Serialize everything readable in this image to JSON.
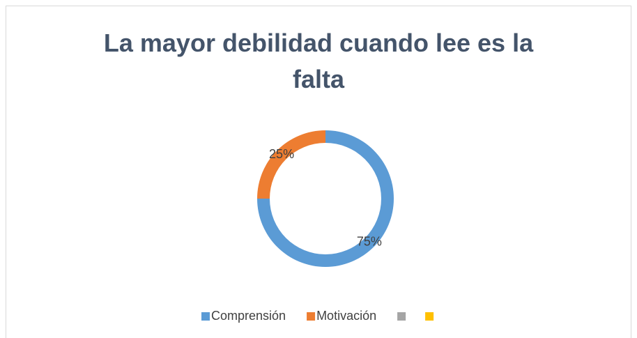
{
  "chart_data": {
    "type": "doughnut",
    "title": "La mayor debilidad cuando lee es la falta",
    "categories": [
      "Comprensión",
      "Motivación",
      null,
      null
    ],
    "values": [
      75,
      25,
      0,
      0
    ],
    "value_labels": [
      "75%",
      "25%",
      null,
      null
    ],
    "colors": [
      "#5b9bd5",
      "#ed7d31",
      "#a5a5a5",
      "#ffc000"
    ],
    "legend": "bottom"
  }
}
